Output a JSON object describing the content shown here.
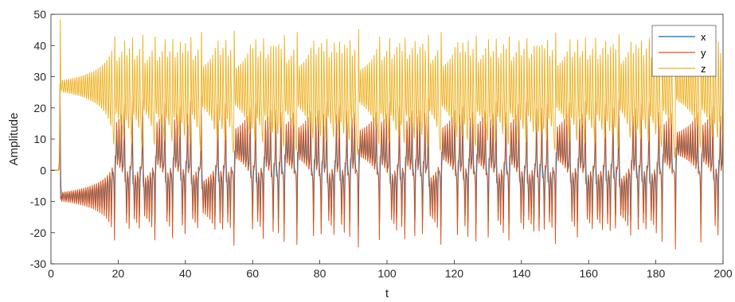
{
  "chart_data": {
    "type": "line",
    "title": "",
    "xlabel": "t",
    "ylabel": "Amplitude",
    "xlim": [
      0,
      200
    ],
    "ylim": [
      -30,
      50
    ],
    "x_ticks": [
      "0",
      "20",
      "40",
      "60",
      "80",
      "100",
      "120",
      "140",
      "160",
      "180",
      "200"
    ],
    "y_ticks": [
      "-30",
      "-20",
      "-10",
      "0",
      "10",
      "20",
      "30",
      "40",
      "50"
    ],
    "grid": false,
    "legend_position": "top-right",
    "series": [
      {
        "name": "x",
        "color": "#0072BD"
      },
      {
        "name": "y",
        "color": "#D95319"
      },
      {
        "name": "z",
        "color": "#EDB120"
      }
    ],
    "approx_values": {
      "z_quiescent_level": 27,
      "z_oscillation_range": [
        12,
        48
      ],
      "x_y_quiescent_level": -8.5,
      "x_y_oscillation_range": [
        -25,
        18
      ]
    }
  }
}
